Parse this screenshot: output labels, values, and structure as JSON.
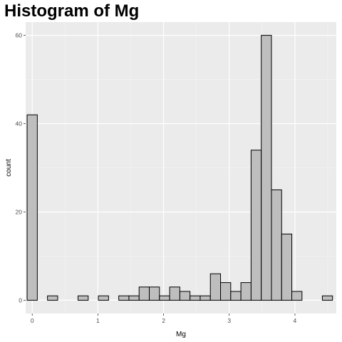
{
  "chart_data": {
    "type": "bar",
    "title": "Histogram of Mg",
    "xlabel": "Mg",
    "ylabel": "count",
    "xlim": [
      -0.1,
      4.63
    ],
    "ylim": [
      -3,
      63
    ],
    "xticks": [
      0,
      1,
      2,
      3,
      4
    ],
    "yticks": [
      0,
      20,
      40,
      60
    ],
    "bin_width": 0.155,
    "bins": [
      {
        "x": 0.0,
        "count": 42
      },
      {
        "x": 0.31,
        "count": 1
      },
      {
        "x": 0.775,
        "count": 1
      },
      {
        "x": 1.085,
        "count": 1
      },
      {
        "x": 1.395,
        "count": 1
      },
      {
        "x": 1.55,
        "count": 1
      },
      {
        "x": 1.705,
        "count": 3
      },
      {
        "x": 1.86,
        "count": 3
      },
      {
        "x": 2.015,
        "count": 1
      },
      {
        "x": 2.17,
        "count": 3
      },
      {
        "x": 2.325,
        "count": 2
      },
      {
        "x": 2.48,
        "count": 1
      },
      {
        "x": 2.635,
        "count": 1
      },
      {
        "x": 2.79,
        "count": 6
      },
      {
        "x": 2.945,
        "count": 4
      },
      {
        "x": 3.1,
        "count": 2
      },
      {
        "x": 3.255,
        "count": 4
      },
      {
        "x": 3.41,
        "count": 34
      },
      {
        "x": 3.565,
        "count": 60
      },
      {
        "x": 3.72,
        "count": 25
      },
      {
        "x": 3.875,
        "count": 15
      },
      {
        "x": 4.03,
        "count": 2
      },
      {
        "x": 4.495,
        "count": 1
      }
    ],
    "colors": {
      "panel": "#ebebeb",
      "grid_major": "#ffffff",
      "bar_fill": "#bebebe",
      "bar_stroke": "#000000"
    }
  }
}
